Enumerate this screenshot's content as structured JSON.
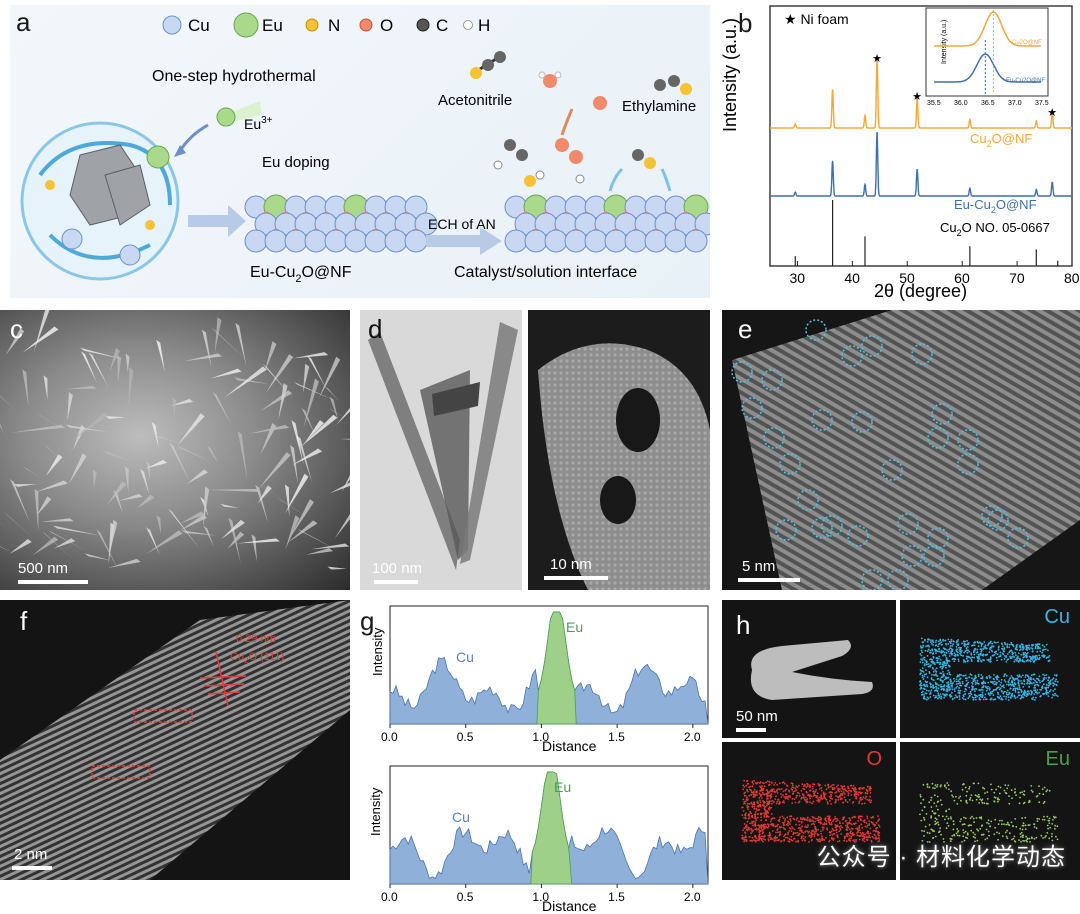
{
  "panels": {
    "a": {
      "letter": "a",
      "legend": [
        "Cu",
        "Eu",
        "N",
        "O",
        "C",
        "H"
      ],
      "one_step": "One-step hydrothermal",
      "eu_ion": "Eu",
      "eu_ion_sup": "3+",
      "eu_doping": "Eu doping",
      "product_pre": "Eu-Cu",
      "product_sub": "2",
      "product_post": "O@NF",
      "ech": "ECH of AN",
      "acetonitrile": "Acetonitrile",
      "ethylamine": "Ethylamine",
      "interface": "Catalyst/solution interface"
    },
    "b": {
      "letter": "b",
      "ni_foam": "★ Ni foam",
      "label_cu2o_pre": "Cu",
      "label_cu2o_sub": "2",
      "label_cu2o_post": "O@NF",
      "label_eu_pre": "Eu-Cu",
      "label_eu_sub": "2",
      "label_eu_post": "O@NF",
      "label_ref_pre": "Cu",
      "label_ref_sub": "2",
      "label_ref_post": "O NO. 05-0667",
      "inset_ylabel": "Intensity (a.u.)",
      "inset_label_top": "Cu2O@NF",
      "inset_label_bottom": "Eu-Cu2O@NF"
    },
    "c": {
      "letter": "c",
      "scale": "500 nm"
    },
    "d": {
      "letter": "d",
      "scale_left": "100 nm",
      "scale_right": "10 nm"
    },
    "e": {
      "letter": "e",
      "scale": "5 nm"
    },
    "f": {
      "letter": "f",
      "scale": "2 nm",
      "dspace": "0.29 nm",
      "plane_pre": "Cu",
      "plane_sub": "2",
      "plane_post": "O (111)"
    },
    "g": {
      "letter": "g",
      "cu": "Cu",
      "eu": "Eu"
    },
    "h": {
      "letter": "h",
      "scale": "50 nm",
      "cu": "Cu",
      "o": "O",
      "eu": "Eu"
    }
  },
  "watermark": "公众号 · 材料化学动态",
  "chart_data": [
    {
      "type": "line",
      "id": "xrd",
      "xlabel": "2θ (degree)",
      "ylabel": "Intensity (a.u.)",
      "xlim": [
        25,
        80
      ],
      "xticks": [
        30,
        40,
        50,
        60,
        70,
        80
      ],
      "series": [
        {
          "name": "Cu2O@NF",
          "color": "#f0a93a",
          "peaks": [
            [
              29.6,
              0.06
            ],
            [
              36.4,
              0.55
            ],
            [
              42.3,
              0.18
            ],
            [
              44.5,
              1.0
            ],
            [
              51.8,
              0.42
            ],
            [
              61.4,
              0.12
            ],
            [
              73.5,
              0.1
            ],
            [
              76.4,
              0.22
            ]
          ]
        },
        {
          "name": "Eu-Cu2O@NF",
          "color": "#3e6fb0",
          "peaks": [
            [
              29.6,
              0.06
            ],
            [
              36.4,
              0.55
            ],
            [
              42.3,
              0.18
            ],
            [
              44.5,
              1.0
            ],
            [
              51.8,
              0.42
            ],
            [
              61.4,
              0.12
            ],
            [
              73.5,
              0.1
            ],
            [
              76.4,
              0.22
            ]
          ]
        }
      ],
      "reference_lines": [
        [
          29.6,
          0.15
        ],
        [
          36.4,
          1.0
        ],
        [
          42.3,
          0.45
        ],
        [
          61.4,
          0.3
        ],
        [
          73.5,
          0.25
        ],
        [
          77.4,
          0.08
        ]
      ],
      "marked_peaks": [
        44.5,
        51.8,
        76.4
      ],
      "inset": {
        "xlim": [
          35.5,
          37.5
        ],
        "xticks": [
          35.5,
          36.0,
          36.5,
          37.0,
          37.5
        ],
        "peak_top": 36.6,
        "peak_bottom": 36.45
      }
    },
    {
      "type": "area",
      "id": "line-profile-1",
      "xlabel": "Distance",
      "ylabel": "Intensity",
      "xlim": [
        0,
        2.1
      ],
      "xticks": [
        0.0,
        0.5,
        1.0,
        1.5,
        2.0
      ],
      "eu_range": [
        0.97,
        1.23
      ]
    },
    {
      "type": "area",
      "id": "line-profile-2",
      "xlabel": "Distance",
      "ylabel": "Intensity",
      "xlim": [
        0,
        2.1
      ],
      "xticks": [
        0.0,
        0.5,
        1.0,
        1.5,
        2.0
      ],
      "eu_range": [
        0.93,
        1.2
      ]
    }
  ]
}
